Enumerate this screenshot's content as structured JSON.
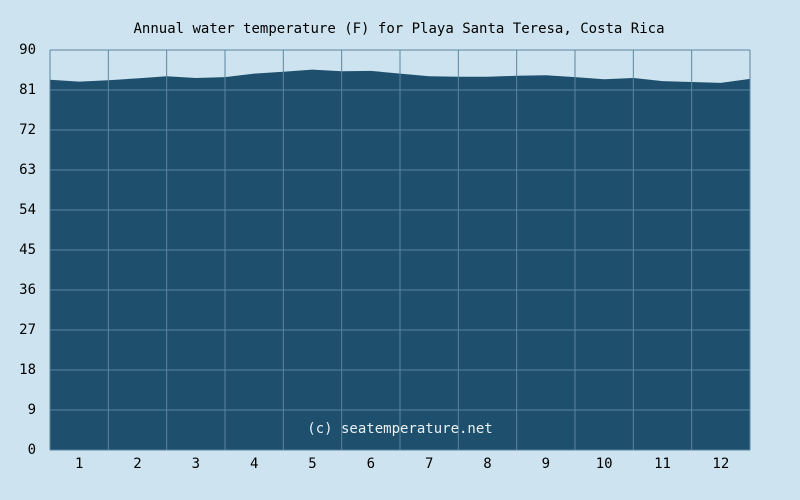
{
  "chart_data": {
    "type": "area",
    "title": "Annual water temperature (F) for Playa Santa Teresa, Costa Rica",
    "xlabel": "",
    "ylabel": "",
    "ylim": [
      0,
      90
    ],
    "yticks": [
      0,
      9,
      18,
      27,
      36,
      45,
      54,
      63,
      72,
      81,
      90
    ],
    "categories": [
      "1",
      "2",
      "3",
      "4",
      "5",
      "6",
      "7",
      "8",
      "9",
      "10",
      "11",
      "12"
    ],
    "x": [
      0,
      0.5,
      1,
      1.5,
      2,
      2.5,
      3,
      3.5,
      4,
      4.5,
      5,
      5.5,
      6,
      6.5,
      7,
      7.5,
      8,
      8.5,
      9,
      9.5,
      10,
      10.5,
      11,
      11.5,
      12
    ],
    "series": [
      {
        "values": [
          83.3,
          82.9,
          83.2,
          83.6,
          84.1,
          83.7,
          83.9,
          84.7,
          85.1,
          85.6,
          85.2,
          85.3,
          84.7,
          84.1,
          84.0,
          84.0,
          84.2,
          84.3,
          83.9,
          83.4,
          83.7,
          83.0,
          82.8,
          82.6,
          83.5
        ]
      }
    ],
    "watermark": "(c) seatemperature.net",
    "grid": true,
    "colors": {
      "background": "#cde3ef",
      "fill": "#1e4f6c",
      "grid": "#5a86a0",
      "watermark": "#e9f1f5"
    }
  }
}
